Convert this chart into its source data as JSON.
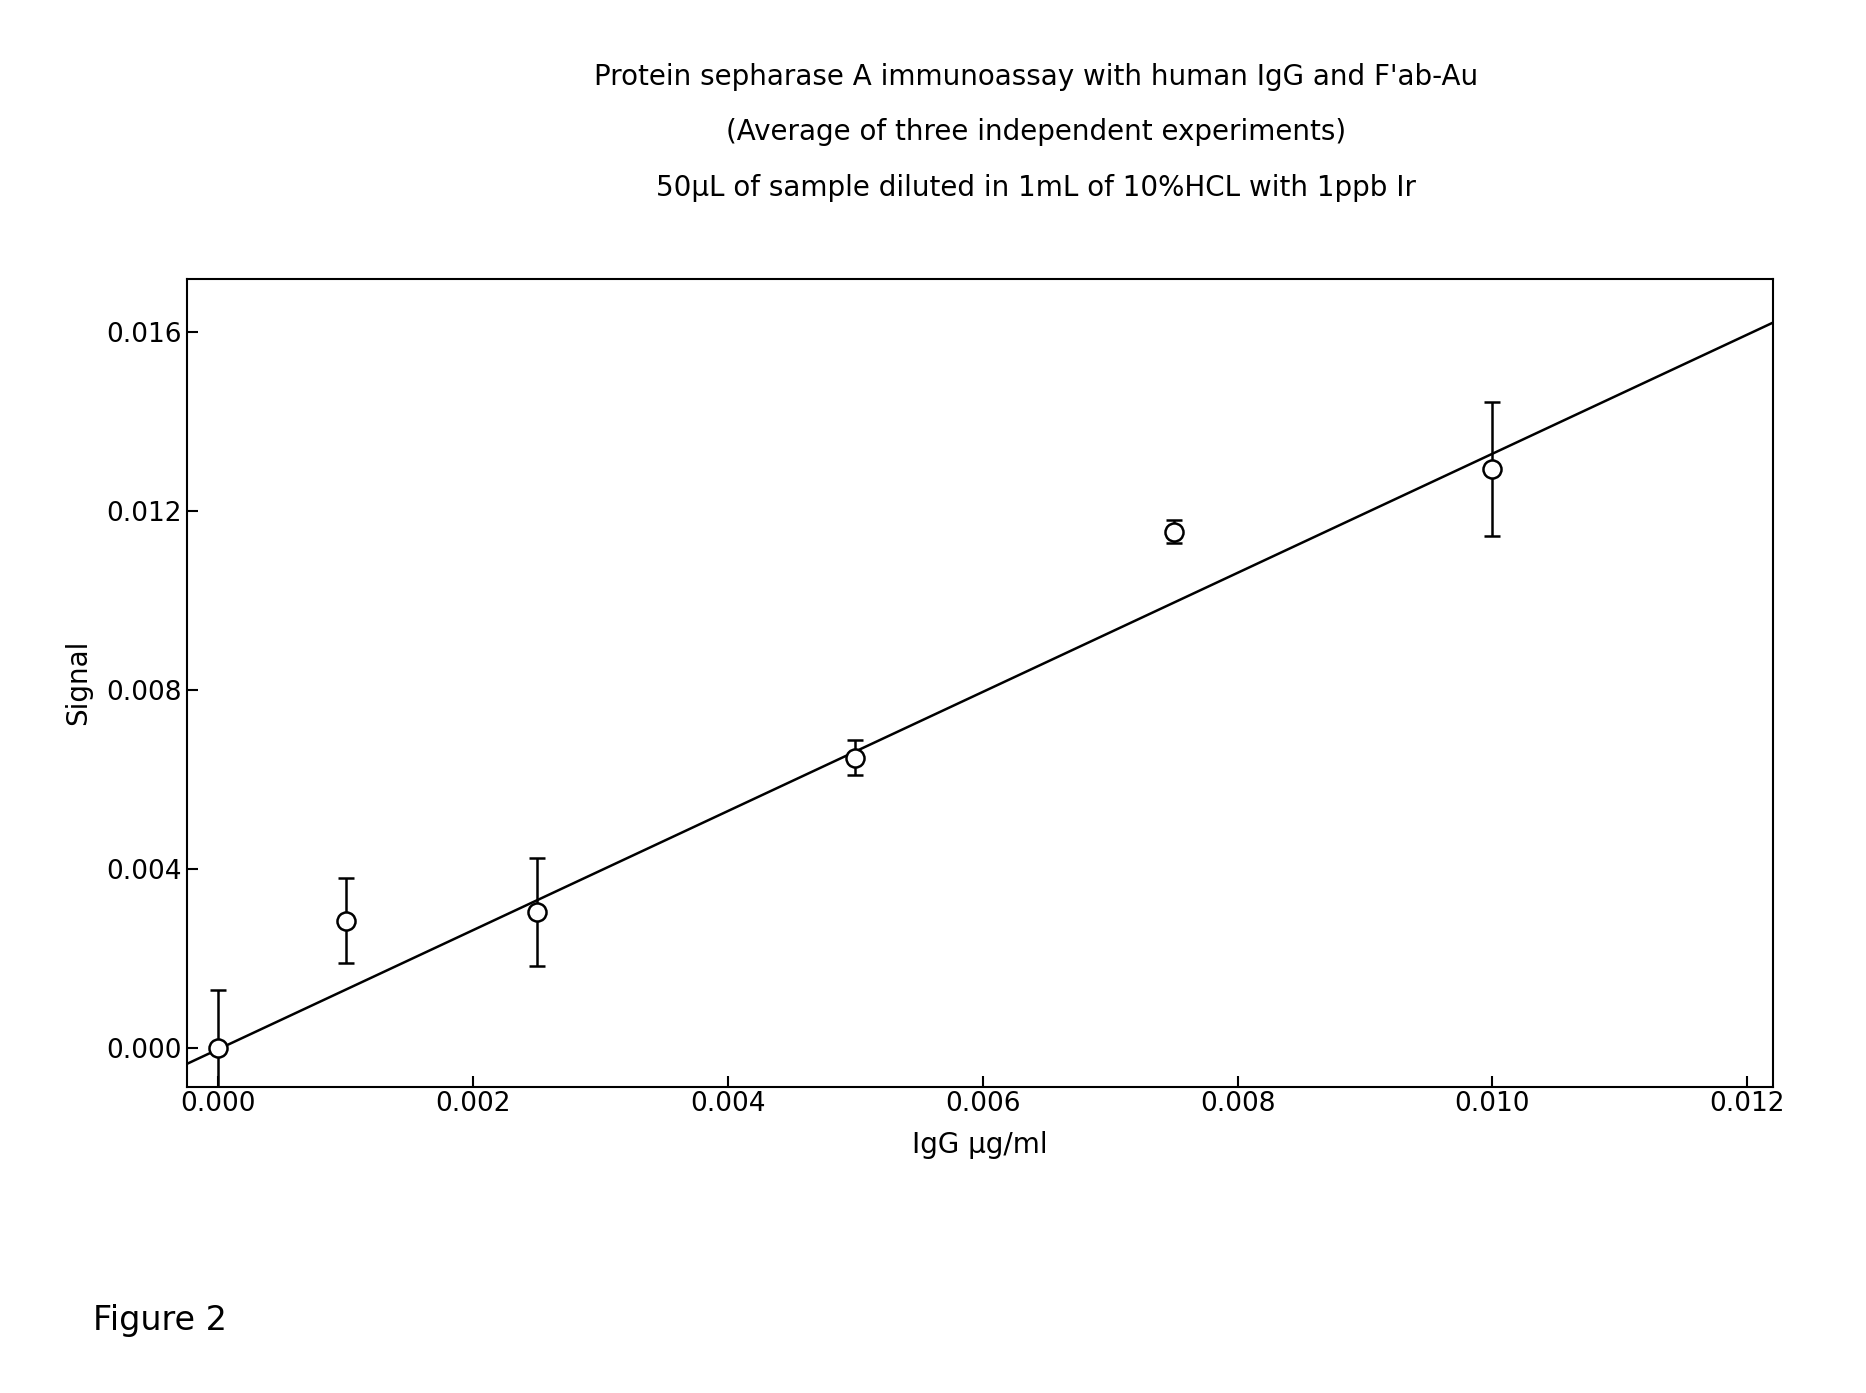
{
  "title_line1": "Protein sepharase A immunoassay with human IgG and F'ab-Au",
  "title_line2": "(Average of three independent experiments)",
  "title_line3": "50μL of sample diluted in 1mL of 10%HCL with 1ppb Ir",
  "xlabel": "IgG μg/ml",
  "ylabel": "Signal",
  "figure_label": "Figure 2",
  "x_data": [
    0.0,
    0.001,
    0.0025,
    0.005,
    0.0075,
    0.01
  ],
  "y_data": [
    0.0,
    0.00285,
    0.00305,
    0.0065,
    0.01155,
    0.01295
  ],
  "y_err": [
    0.0013,
    0.00095,
    0.0012,
    0.0004,
    0.00025,
    0.0015
  ],
  "fit_x": [
    -0.00035,
    0.0124
  ],
  "fit_y": [
    -0.00048,
    0.01648
  ],
  "xlim": [
    -0.00025,
    0.0122
  ],
  "ylim": [
    -0.00085,
    0.0172
  ],
  "xticks": [
    0.0,
    0.002,
    0.004,
    0.006,
    0.008,
    0.01,
    0.012
  ],
  "yticks": [
    0.0,
    0.004,
    0.008,
    0.012,
    0.016
  ],
  "background_color": "#ffffff",
  "marker_facecolor": "#ffffff",
  "marker_edgecolor": "#000000",
  "line_color": "#000000",
  "title_fontsize": 20,
  "label_fontsize": 20,
  "tick_fontsize": 19,
  "figure_label_fontsize": 24
}
